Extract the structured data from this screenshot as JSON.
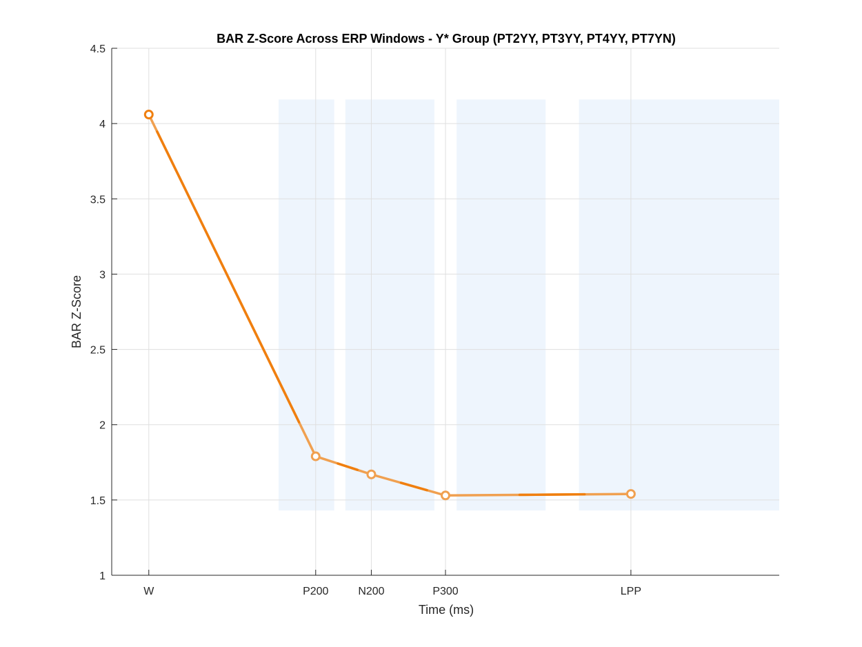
{
  "chart_data": {
    "type": "line",
    "title": "BAR Z-Score Across ERP Windows - Y* Group (PT2YY, PT3YY, PT4YY, PT7YN)",
    "xlabel": "Time (ms)",
    "ylabel": "BAR Z-Score",
    "categories": [
      "W",
      "P200",
      "N200",
      "P300",
      "LPP"
    ],
    "x_ms": [
      -200,
      250,
      400,
      600,
      1100
    ],
    "xlim": [
      -300,
      1500
    ],
    "ylim": [
      1,
      4.5
    ],
    "yticks": [
      1,
      1.5,
      2,
      2.5,
      3,
      3.5,
      4,
      4.5
    ],
    "ytick_labels": [
      "1",
      "1.5",
      "2",
      "2.5",
      "3",
      "3.5",
      "4",
      "4.5"
    ],
    "grid": true,
    "series": [
      {
        "values": [
          4.06,
          1.79,
          1.67,
          1.53,
          1.54
        ],
        "color": "#f07f0f"
      }
    ],
    "shaded_windows_ms": [
      [
        150,
        300
      ],
      [
        330,
        570
      ],
      [
        630,
        870
      ],
      [
        960,
        1500
      ]
    ],
    "shaded_y_range": [
      1.43,
      4.16
    ],
    "shade_color": "#eef5fd",
    "line_color": "#f0a050",
    "marker_color": "#f0a050"
  }
}
